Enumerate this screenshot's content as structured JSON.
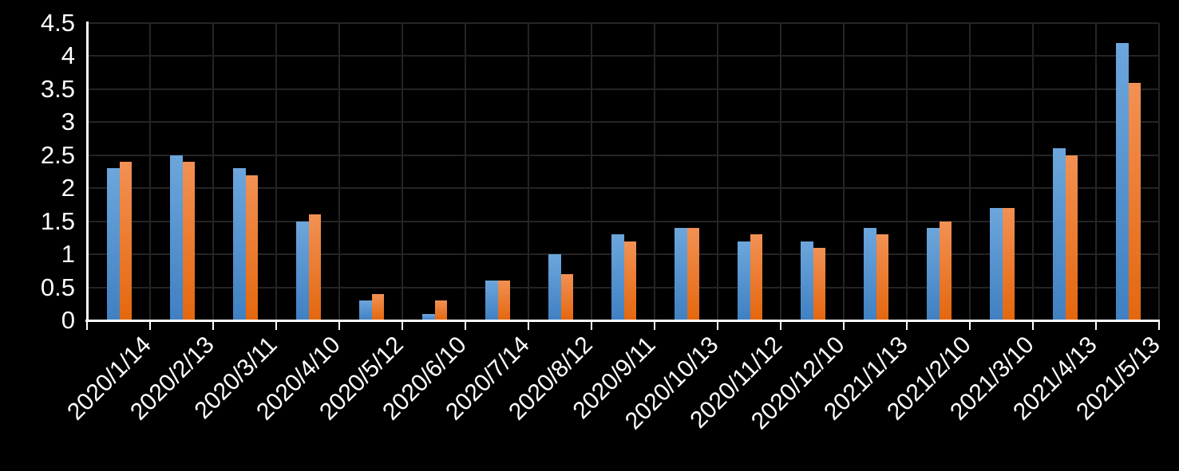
{
  "chart": {
    "background_color": "#000000",
    "axis_color": "#ffffff",
    "gridline_color": "#242424",
    "label_color": "#ffffff"
  },
  "chart_data": {
    "type": "bar",
    "title": "",
    "xlabel": "",
    "ylabel": "",
    "categories": [
      "2020/1/14",
      "2020/2/13",
      "2020/3/11",
      "2020/4/10",
      "2020/5/12",
      "2020/6/10",
      "2020/7/14",
      "2020/8/12",
      "2020/9/11",
      "2020/10/13",
      "2020/11/12",
      "2020/12/10",
      "2021/1/13",
      "2021/2/10",
      "2021/3/10",
      "2021/4/13",
      "2021/5/13"
    ],
    "series": [
      {
        "name": "blue-series",
        "color_top": "#6CA6DC",
        "color_bottom": "#4080C2",
        "values": [
          2.3,
          2.5,
          2.3,
          1.5,
          0.3,
          0.1,
          0.6,
          1.0,
          1.3,
          1.4,
          1.2,
          1.2,
          1.4,
          1.4,
          1.7,
          2.6,
          4.2
        ]
      },
      {
        "name": "orange-series",
        "color_top": "#F29154",
        "color_bottom": "#E4670E",
        "values": [
          2.4,
          2.4,
          2.2,
          1.6,
          0.4,
          0.3,
          0.6,
          0.7,
          1.2,
          1.4,
          1.3,
          1.1,
          1.3,
          1.5,
          1.7,
          2.5,
          3.6
        ]
      }
    ],
    "ylim": [
      0,
      4.5
    ],
    "ytick_labels_top_to_bottom": [
      "4.5",
      "4",
      "3.5",
      "3",
      "2.5",
      "2",
      "1.5",
      "1",
      "0.5",
      "0"
    ],
    "grid": "horizontal and vertical dark gray on black",
    "legend": "none",
    "x_label_rotation_deg": -45
  }
}
